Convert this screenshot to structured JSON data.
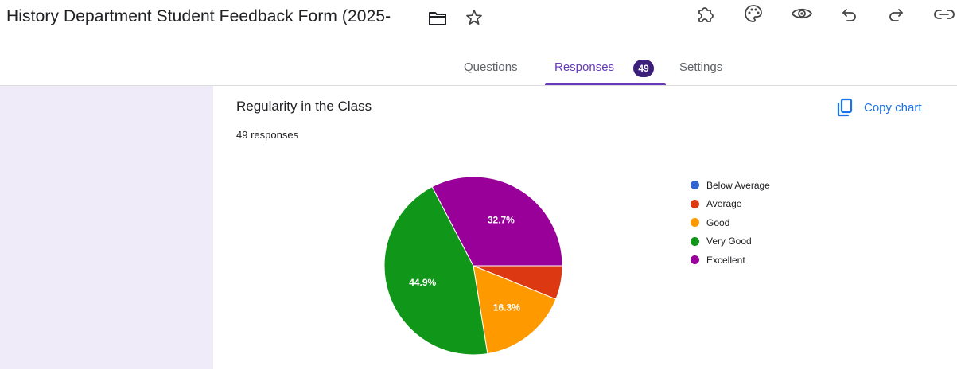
{
  "header": {
    "title": "History Department Student Feedback Form (2025-",
    "icons": [
      "folder-icon",
      "star-icon",
      "addon-icon",
      "palette-icon",
      "preview-eye-icon",
      "undo-icon",
      "redo-icon",
      "link-icon"
    ]
  },
  "tabs": [
    {
      "label": "Questions",
      "active": false
    },
    {
      "label": "Responses",
      "active": true,
      "badge": "49"
    },
    {
      "label": "Settings",
      "active": false
    }
  ],
  "question": {
    "title": "Regularity in the Class",
    "count_text": "49 responses",
    "copy_chart_label": "Copy chart",
    "copy_icon": "copy-icon"
  },
  "colors": {
    "accent": "#673ab7",
    "link": "#1a73e8",
    "side_panel": "#f0ebf8"
  },
  "chart_data": {
    "type": "pie",
    "categories": [
      "Below Average",
      "Average",
      "Good",
      "Very Good",
      "Excellent"
    ],
    "values": [
      0,
      3,
      8,
      22,
      16
    ],
    "percent_labels": [
      "",
      "",
      "16.3%",
      "44.9%",
      "32.7%"
    ],
    "colors": [
      "#3366cc",
      "#dc3912",
      "#ff9900",
      "#109618",
      "#990099"
    ],
    "legend_position": "right"
  }
}
